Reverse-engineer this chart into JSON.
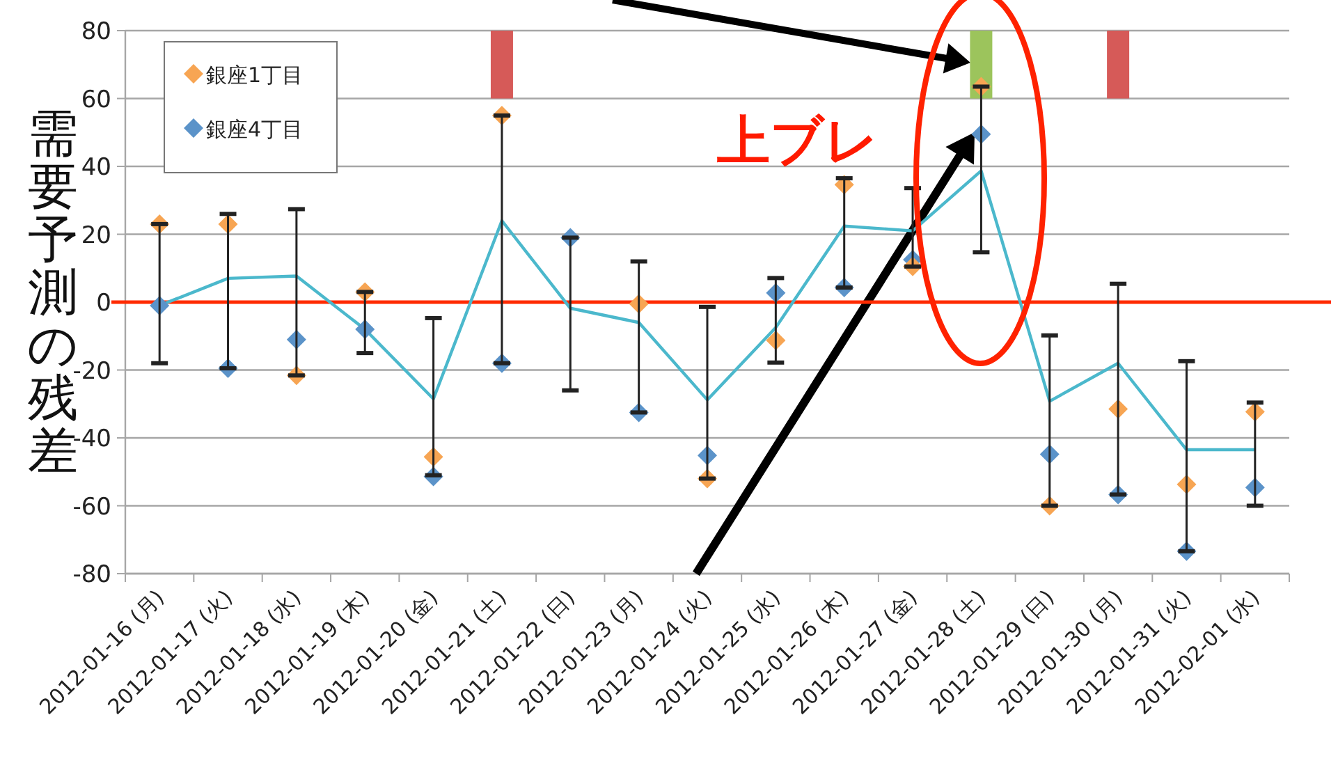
{
  "chart_data": {
    "type": "line",
    "ylabel": "需要予測の残差",
    "categories": [
      "2012-01-16 (月)",
      "2012-01-17 (火)",
      "2012-01-18 (水)",
      "2012-01-19 (木)",
      "2012-01-20 (金)",
      "2012-01-21 (土)",
      "2012-01-22 (日)",
      "2012-01-23 (月)",
      "2012-01-24 (火)",
      "2012-01-25 (水)",
      "2012-01-26 (木)",
      "2012-01-27 (金)",
      "2012-01-28 (土)",
      "2012-01-29 (日)",
      "2012-01-30 (月)",
      "2012-01-31 (火)",
      "2012-02-01 (水)"
    ],
    "series": [
      {
        "type": "bar",
        "colors": [
          null,
          null,
          null,
          null,
          null,
          "#d65a58",
          null,
          null,
          null,
          null,
          null,
          null,
          "#9cc45c",
          null,
          "#d65a58",
          null,
          null
        ],
        "base": [
          null,
          null,
          null,
          null,
          null,
          60,
          null,
          null,
          null,
          null,
          null,
          null,
          60,
          null,
          60,
          null,
          null
        ],
        "values": [
          null,
          null,
          null,
          null,
          null,
          20,
          null,
          null,
          null,
          null,
          null,
          null,
          20,
          null,
          20,
          null,
          null
        ]
      },
      {
        "type": "bar",
        "color": "#222222",
        "base": [
          -18,
          -19.5,
          -21.6,
          -15,
          -51,
          -18,
          -26,
          -32.5,
          -52,
          -17.8,
          4.3,
          10.5,
          14.7,
          -60,
          -56.7,
          -73.4,
          -60
        ],
        "values": [
          41,
          45.5,
          49,
          18,
          46.3,
          73,
          45,
          44.5,
          50.6,
          24.9,
          32.2,
          23.1,
          48.8,
          50.2,
          62.1,
          56,
          30.4
        ]
      },
      {
        "color": "#4bb8cc",
        "marker": "none",
        "values": [
          -1,
          7,
          7.7,
          -8,
          -28.5,
          24,
          -1.8,
          -6,
          -28.8,
          -7.5,
          22.4,
          21,
          38.7,
          -29.2,
          -18,
          -43.5,
          -43.5
        ]
      },
      {
        "type": "scatter",
        "name": "銀座1丁目",
        "color": "#f7a553",
        "values": [
          23,
          23,
          -21.6,
          3,
          -45.6,
          55,
          null,
          -0.5,
          -52,
          -11.3,
          34.6,
          10.5,
          63.5,
          -60,
          -31.5,
          -53.7,
          -32.3
        ]
      },
      {
        "type": "scatter",
        "name": "銀座4丁目",
        "color": "#5b93c9",
        "values": [
          -1,
          -19.5,
          -11,
          -8,
          -51.4,
          -18,
          19,
          -32.5,
          -45.2,
          2.7,
          4.3,
          12.5,
          49.5,
          -44.8,
          -56.7,
          -73.4,
          -54.6
        ]
      }
    ],
    "ylim": [
      -80,
      80
    ],
    "yticks": [
      -80,
      -60,
      -40,
      -20,
      0,
      20,
      40,
      60,
      80
    ],
    "grid": "y",
    "legend": "top left",
    "marker": "diamond",
    "ref_lines": [
      {
        "axis": "y",
        "value": 0,
        "color": "#ff2a00"
      }
    ],
    "annotations": [
      "上ブレ"
    ]
  }
}
